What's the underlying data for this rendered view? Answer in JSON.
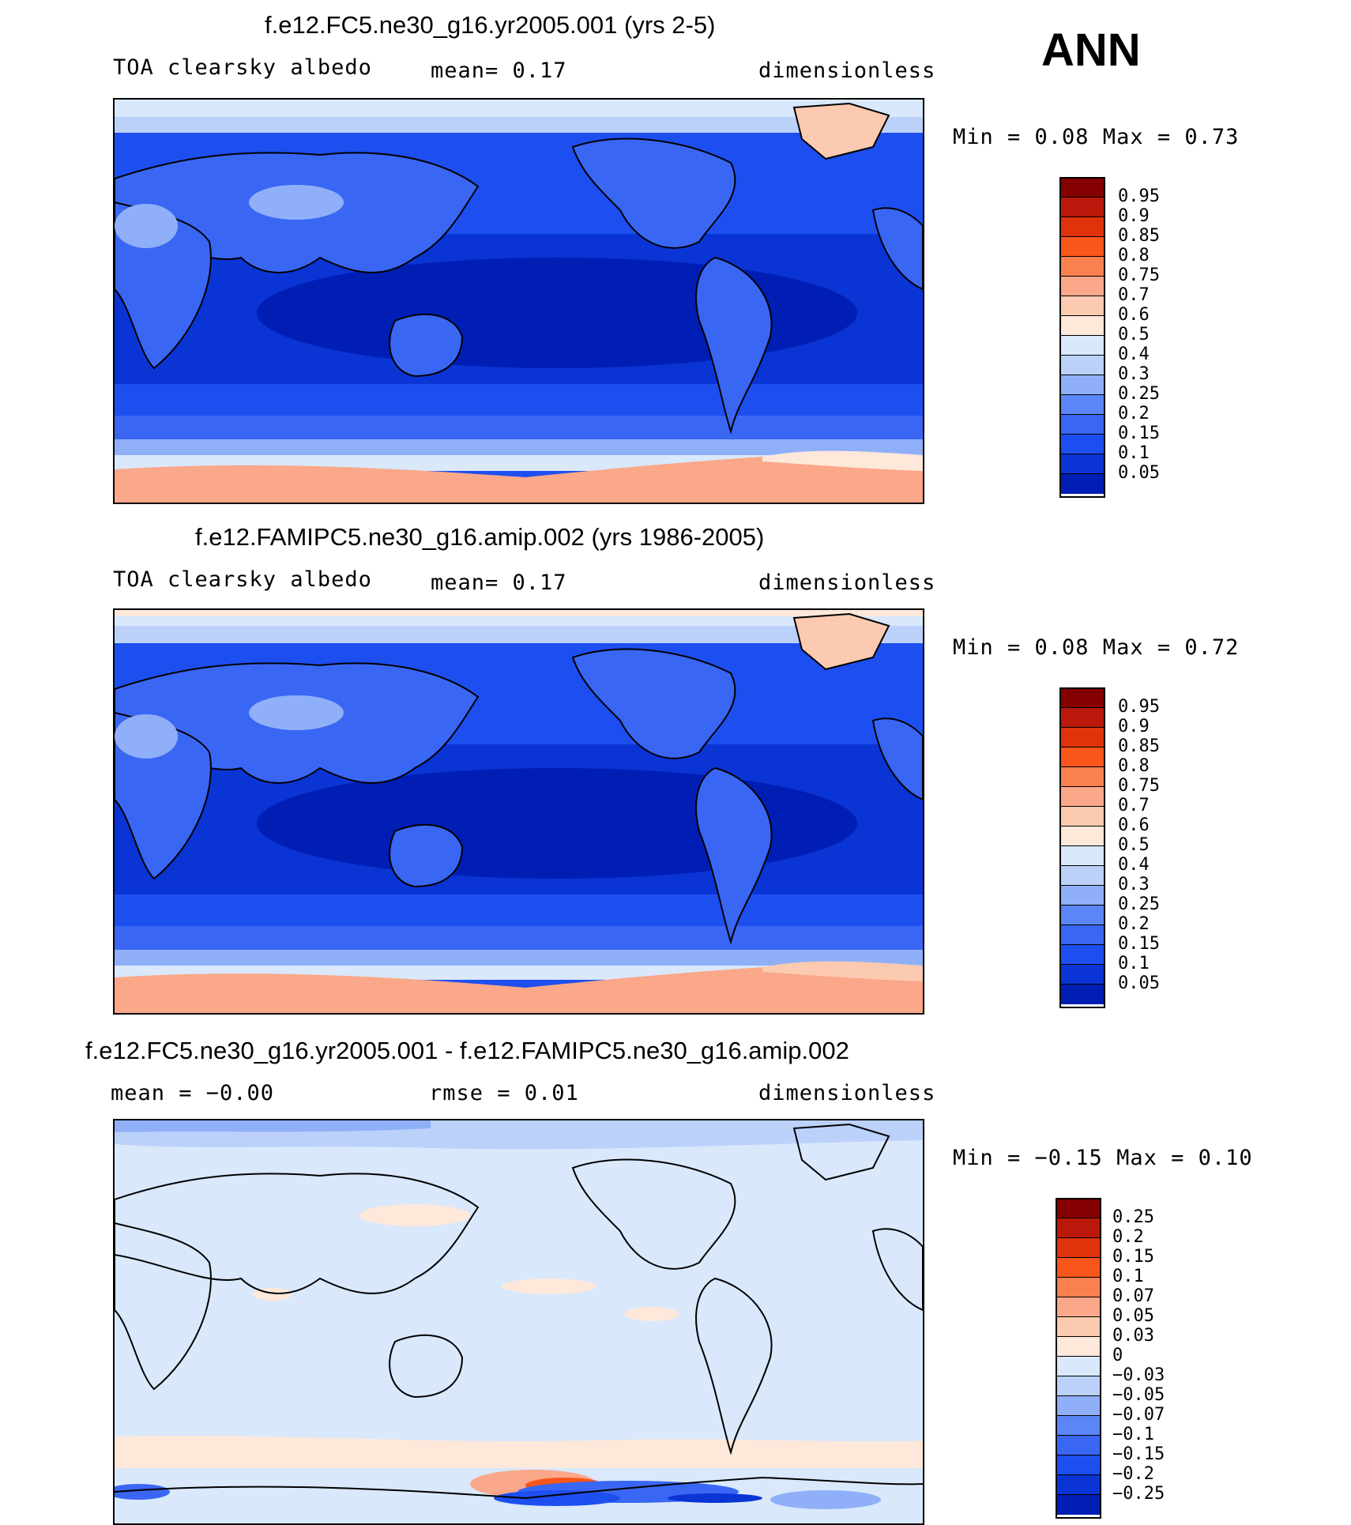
{
  "season": "ANN",
  "colors": {
    "abs_palette": [
      "#00007f",
      "#001eb4",
      "#0a34d4",
      "#1d4ff0",
      "#3a66f4",
      "#5b86f7",
      "#8fb0f8",
      "#bcd1fa",
      "#d9e8fb",
      "#fde8da",
      "#fccab0",
      "#fba789",
      "#fa8050",
      "#f8561a",
      "#e0330c",
      "#b9180a",
      "#850000"
    ],
    "diff_palette": [
      "#00007f",
      "#001eb4",
      "#0a34d4",
      "#1d4ff0",
      "#3a66f4",
      "#5b86f7",
      "#8fb0f8",
      "#bcd1fa",
      "#d9e8fb",
      "#fde8da",
      "#fccab0",
      "#fba789",
      "#fa8050",
      "#f8561a",
      "#e0330c",
      "#b9180a",
      "#850000"
    ]
  },
  "panels": [
    {
      "id": "test",
      "title": "f.e12.FC5.ne30_g16.yr2005.001 (yrs 2-5)",
      "left_label": "TOA clearsky albedo",
      "mid_label": "mean=    0.17",
      "right_label": "dimensionless",
      "stats": "Min =    0.08 Max =    0.73",
      "levels": [
        "0.95",
        "0.9",
        "0.85",
        "0.8",
        "0.75",
        "0.7",
        "0.6",
        "0.5",
        "0.4",
        "0.3",
        "0.25",
        "0.2",
        "0.15",
        "0.1",
        "0.05"
      ]
    },
    {
      "id": "control",
      "title": "f.e12.FAMIPC5.ne30_g16.amip.002 (yrs 1986-2005)",
      "left_label": "TOA clearsky albedo",
      "mid_label": "mean=    0.17",
      "right_label": "dimensionless",
      "stats": "Min =    0.08 Max =    0.72",
      "levels": [
        "0.95",
        "0.9",
        "0.85",
        "0.8",
        "0.75",
        "0.7",
        "0.6",
        "0.5",
        "0.4",
        "0.3",
        "0.25",
        "0.2",
        "0.15",
        "0.1",
        "0.05"
      ]
    },
    {
      "id": "diff",
      "title": "f.e12.FC5.ne30_g16.yr2005.001 - f.e12.FAMIPC5.ne30_g16.amip.002",
      "left_label": "mean =   −0.00",
      "mid_label": "rmse =    0.01",
      "right_label": "dimensionless",
      "stats": "Min =  −0.15 Max =    0.10",
      "levels": [
        "0.25",
        "0.2",
        "0.15",
        "0.1",
        "0.07",
        "0.05",
        "0.03",
        "0",
        "−0.03",
        "−0.05",
        "−0.07",
        "−0.1",
        "−0.15",
        "−0.2",
        "−0.25"
      ]
    }
  ]
}
